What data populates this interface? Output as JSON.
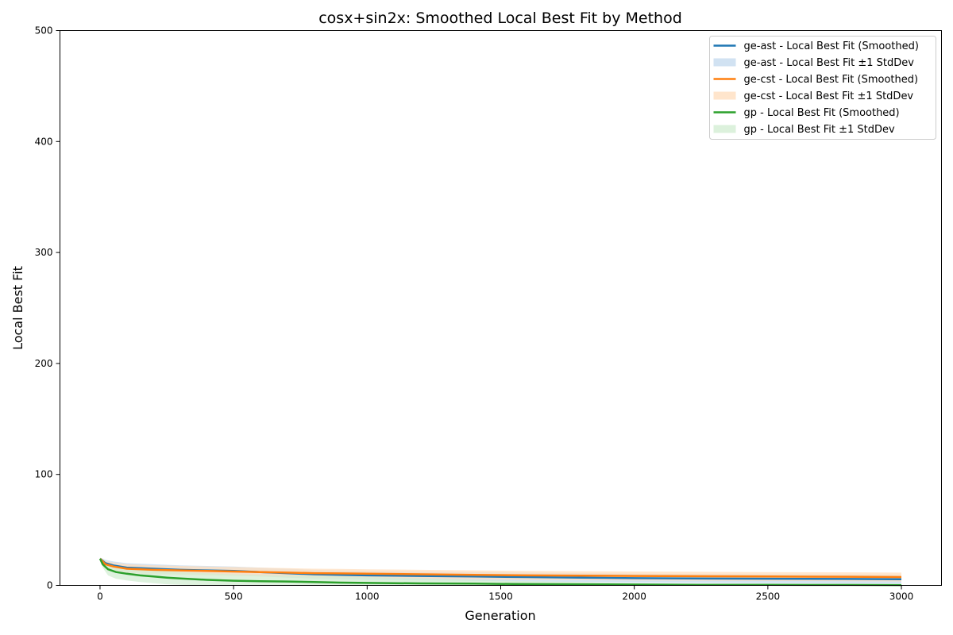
{
  "chart_data": {
    "type": "line",
    "title": "cosx+sin2x: Smoothed Local Best Fit by Method",
    "xlabel": "Generation",
    "ylabel": "Local Best Fit",
    "xlim": [
      -150,
      3150
    ],
    "ylim": [
      0,
      500
    ],
    "xticks": [
      0,
      500,
      1000,
      1500,
      2000,
      2500,
      3000
    ],
    "yticks": [
      0,
      100,
      200,
      300,
      400,
      500
    ],
    "grid": false,
    "legend_position": "top-right",
    "series": [
      {
        "name": "ge-ast - Local Best Fit (Smoothed)",
        "band_name": "ge-ast - Local Best Fit ±1 StdDev",
        "color": "#1f77b4",
        "band_color": "#c6dbef",
        "x": [
          0,
          20,
          50,
          100,
          200,
          300,
          400,
          500,
          600,
          700,
          800,
          900,
          1000,
          1200,
          1400,
          1600,
          1800,
          2000,
          2200,
          2500,
          2800,
          3000
        ],
        "y": [
          24,
          20,
          18,
          16,
          15,
          14,
          13.5,
          13,
          12,
          11,
          10,
          9.5,
          9,
          8.5,
          8,
          7.5,
          7,
          6.5,
          6.2,
          6,
          5.8,
          5.5
        ],
        "y_upper": [
          25,
          23,
          21.5,
          20,
          19,
          18,
          17.5,
          17,
          16,
          15,
          14,
          13.5,
          13,
          12.5,
          12,
          11.5,
          11,
          10.5,
          10.2,
          10,
          9.8,
          9.5
        ],
        "y_lower": [
          23,
          17,
          14.5,
          12,
          11,
          10,
          9.5,
          9,
          8,
          7,
          6,
          5.5,
          5,
          4.5,
          4,
          3.5,
          3,
          2.5,
          2.2,
          2,
          1.8,
          1.5
        ]
      },
      {
        "name": "ge-cst - Local Best Fit (Smoothed)",
        "band_name": "ge-cst - Local Best Fit ±1 StdDev",
        "color": "#ff7f0e",
        "band_color": "#ffdfbf",
        "x": [
          0,
          20,
          50,
          100,
          200,
          300,
          400,
          500,
          600,
          700,
          800,
          900,
          1000,
          1200,
          1400,
          1600,
          1800,
          2000,
          2200,
          2500,
          2800,
          3000
        ],
        "y": [
          24,
          19,
          17,
          15,
          14,
          13.5,
          13,
          12.5,
          12,
          11.5,
          11,
          10.8,
          10.5,
          10,
          9.5,
          9,
          8.8,
          8.5,
          8.3,
          8,
          7.8,
          7.5
        ],
        "y_upper": [
          25,
          22,
          20.5,
          19,
          18,
          17.5,
          17,
          16.5,
          16,
          15.5,
          15,
          14.8,
          14.5,
          14,
          13.5,
          13,
          12.8,
          12.5,
          12.3,
          12,
          11.8,
          11.5
        ],
        "y_lower": [
          23,
          16,
          13.5,
          11,
          10,
          9.5,
          9,
          8.5,
          8,
          7.5,
          7,
          6.8,
          6.5,
          6,
          5.5,
          5,
          4.8,
          4.5,
          4.3,
          4,
          3.8,
          3.5
        ]
      },
      {
        "name": "gp - Local Best Fit (Smoothed)",
        "band_name": "gp - Local Best Fit ±1 StdDev",
        "color": "#2ca02c",
        "band_color": "#d3edd3",
        "x": [
          0,
          10,
          30,
          60,
          100,
          150,
          200,
          250,
          300,
          400,
          500,
          600,
          700,
          800,
          900,
          1000,
          1100,
          1200,
          1400,
          1550,
          1800,
          2000,
          2240,
          2500,
          2800,
          3000
        ],
        "y": [
          24,
          19,
          14.5,
          12,
          10.5,
          9,
          8,
          7,
          6.2,
          5,
          4.2,
          3.8,
          3.5,
          3,
          2.5,
          2.2,
          2,
          1.8,
          1.6,
          1.2,
          1,
          0.8,
          0.6,
          0.5,
          0.4,
          0.3
        ],
        "y_upper": [
          25,
          22,
          20,
          18,
          16.5,
          15,
          14,
          13,
          12,
          11,
          10,
          9.5,
          9,
          8.5,
          8,
          7.5,
          7,
          6.5,
          5,
          4,
          3,
          2,
          1.2,
          0.9,
          0.7,
          0.5
        ],
        "y_lower": [
          23,
          16,
          9,
          6,
          4.5,
          3,
          2,
          1,
          0.5,
          0,
          0,
          0,
          0,
          0,
          0,
          0,
          0,
          0,
          0,
          0,
          0,
          0,
          0,
          0,
          0,
          0
        ]
      }
    ]
  }
}
